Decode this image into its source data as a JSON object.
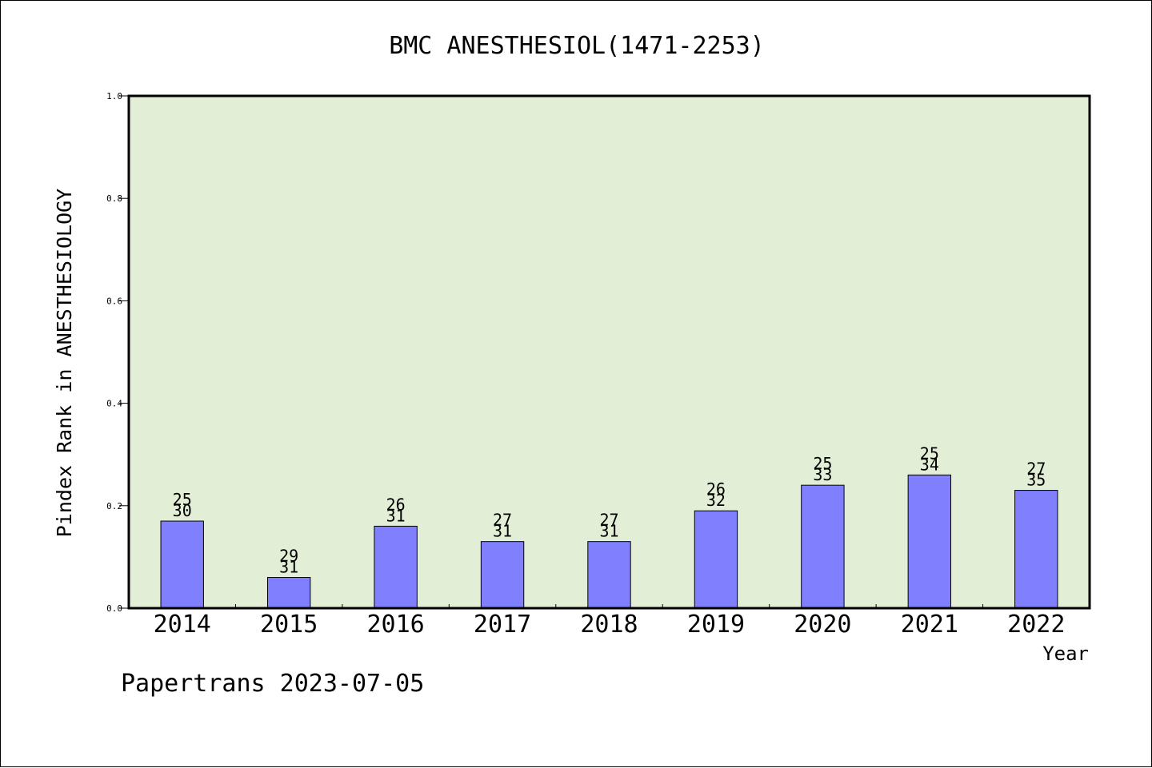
{
  "chart_data": {
    "type": "bar",
    "title": "BMC ANESTHESIOL(1471-2253)",
    "xlabel": "Year",
    "ylabel": "Pindex Rank in ANESTHESIOLOGY",
    "categories": [
      "2014",
      "2015",
      "2016",
      "2017",
      "2018",
      "2019",
      "2020",
      "2021",
      "2022"
    ],
    "values": [
      0.17,
      0.06,
      0.16,
      0.13,
      0.13,
      0.19,
      0.24,
      0.26,
      0.23
    ],
    "labels_top": [
      "25",
      "29",
      "26",
      "27",
      "27",
      "26",
      "25",
      "25",
      "27"
    ],
    "labels_bottom": [
      "30",
      "31",
      "31",
      "31",
      "31",
      "32",
      "33",
      "34",
      "35"
    ],
    "ylim": [
      0,
      1.0
    ],
    "yticks": [
      "0.0",
      "0.2",
      "0.4",
      "0.6",
      "0.8",
      "1.0"
    ],
    "grid": false,
    "colors": {
      "plot_background": "#e2efd6",
      "bar": "#8080ff"
    }
  },
  "footer": "Papertrans 2023-07-05"
}
